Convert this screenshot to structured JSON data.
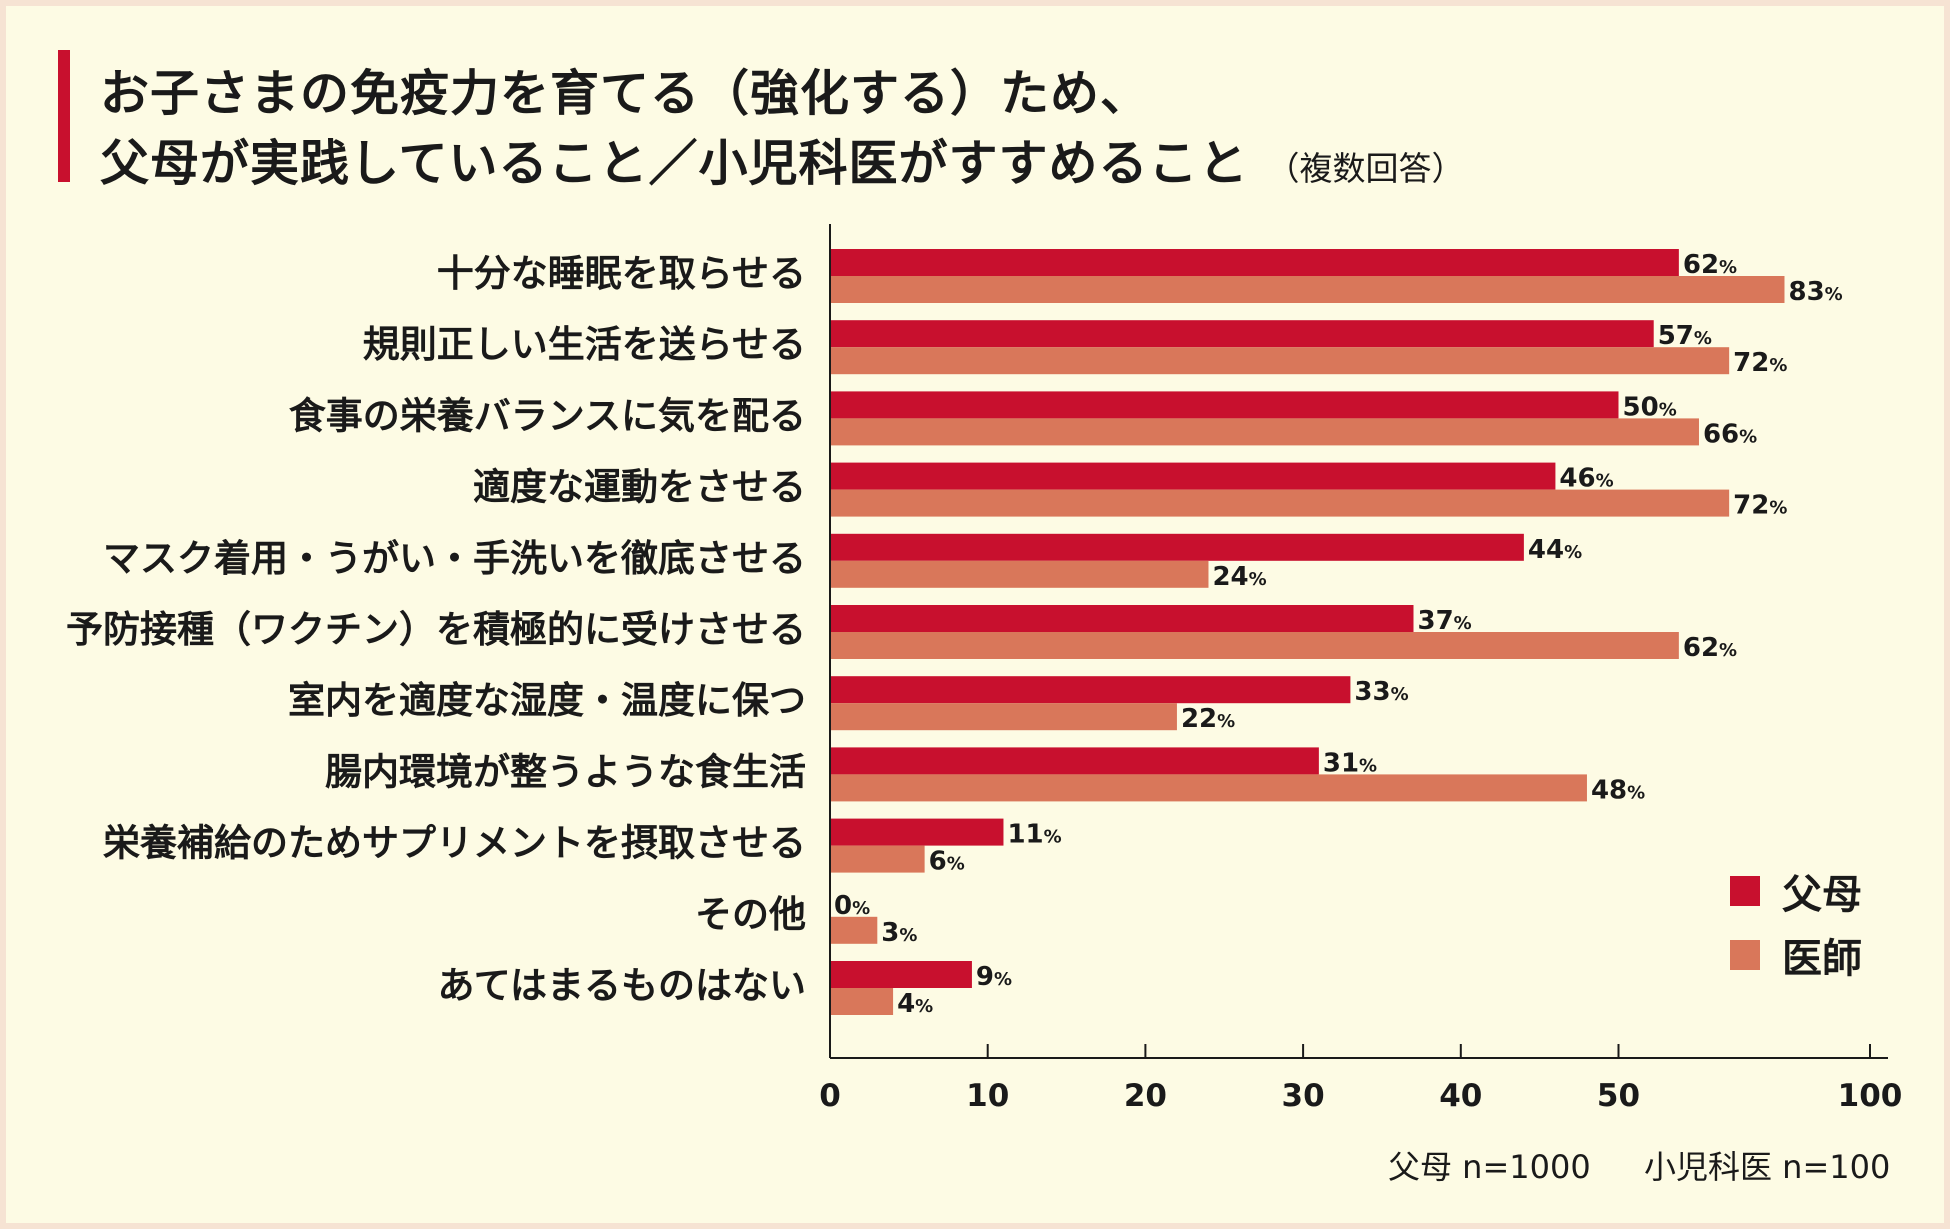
{
  "title_line1": "お子さまの免疫力を育てる（強化する）ため、",
  "title_line2": "父母が実践していること／小児科医がすすめること",
  "title_note": "（複数回答）",
  "colors": {
    "accent": "#c8102e",
    "parents": "#c8102e",
    "doctors": "#d9775a",
    "background": "#fdfbe4",
    "border": "#f6e3d3"
  },
  "legend": {
    "parents": "父母",
    "doctors": "医師"
  },
  "sample_note": {
    "parents": "父母 n=1000",
    "doctors": "小児科医 n=100"
  },
  "chart_data": {
    "type": "bar",
    "orientation": "horizontal",
    "title": "お子さまの免疫力を育てる（強化する）ため、父母が実践していること／小児科医がすすめること（複数回答）",
    "categories": [
      "十分な睡眠を取らせる",
      "規則正しい生活を送らせる",
      "食事の栄養バランスに気を配る",
      "適度な運動をさせる",
      "マスク着用・うがい・手洗いを徹底させる",
      "予防接種（ワクチン）を積極的に受けさせる",
      "室内を適度な湿度・温度に保つ",
      "腸内環境が整うような食生活",
      "栄養補給のためサプリメントを摂取させる",
      "その他",
      "あてはまるものはない"
    ],
    "series": [
      {
        "name": "父母",
        "values": [
          62,
          57,
          50,
          46,
          44,
          37,
          33,
          31,
          11,
          0,
          9
        ]
      },
      {
        "name": "医師",
        "values": [
          83,
          72,
          66,
          72,
          24,
          62,
          22,
          48,
          6,
          3,
          4
        ]
      }
    ],
    "value_suffix": "%",
    "x_ticks": [
      0,
      10,
      20,
      30,
      40,
      50,
      100
    ],
    "legend_position": "bottom-right",
    "grid": false
  }
}
